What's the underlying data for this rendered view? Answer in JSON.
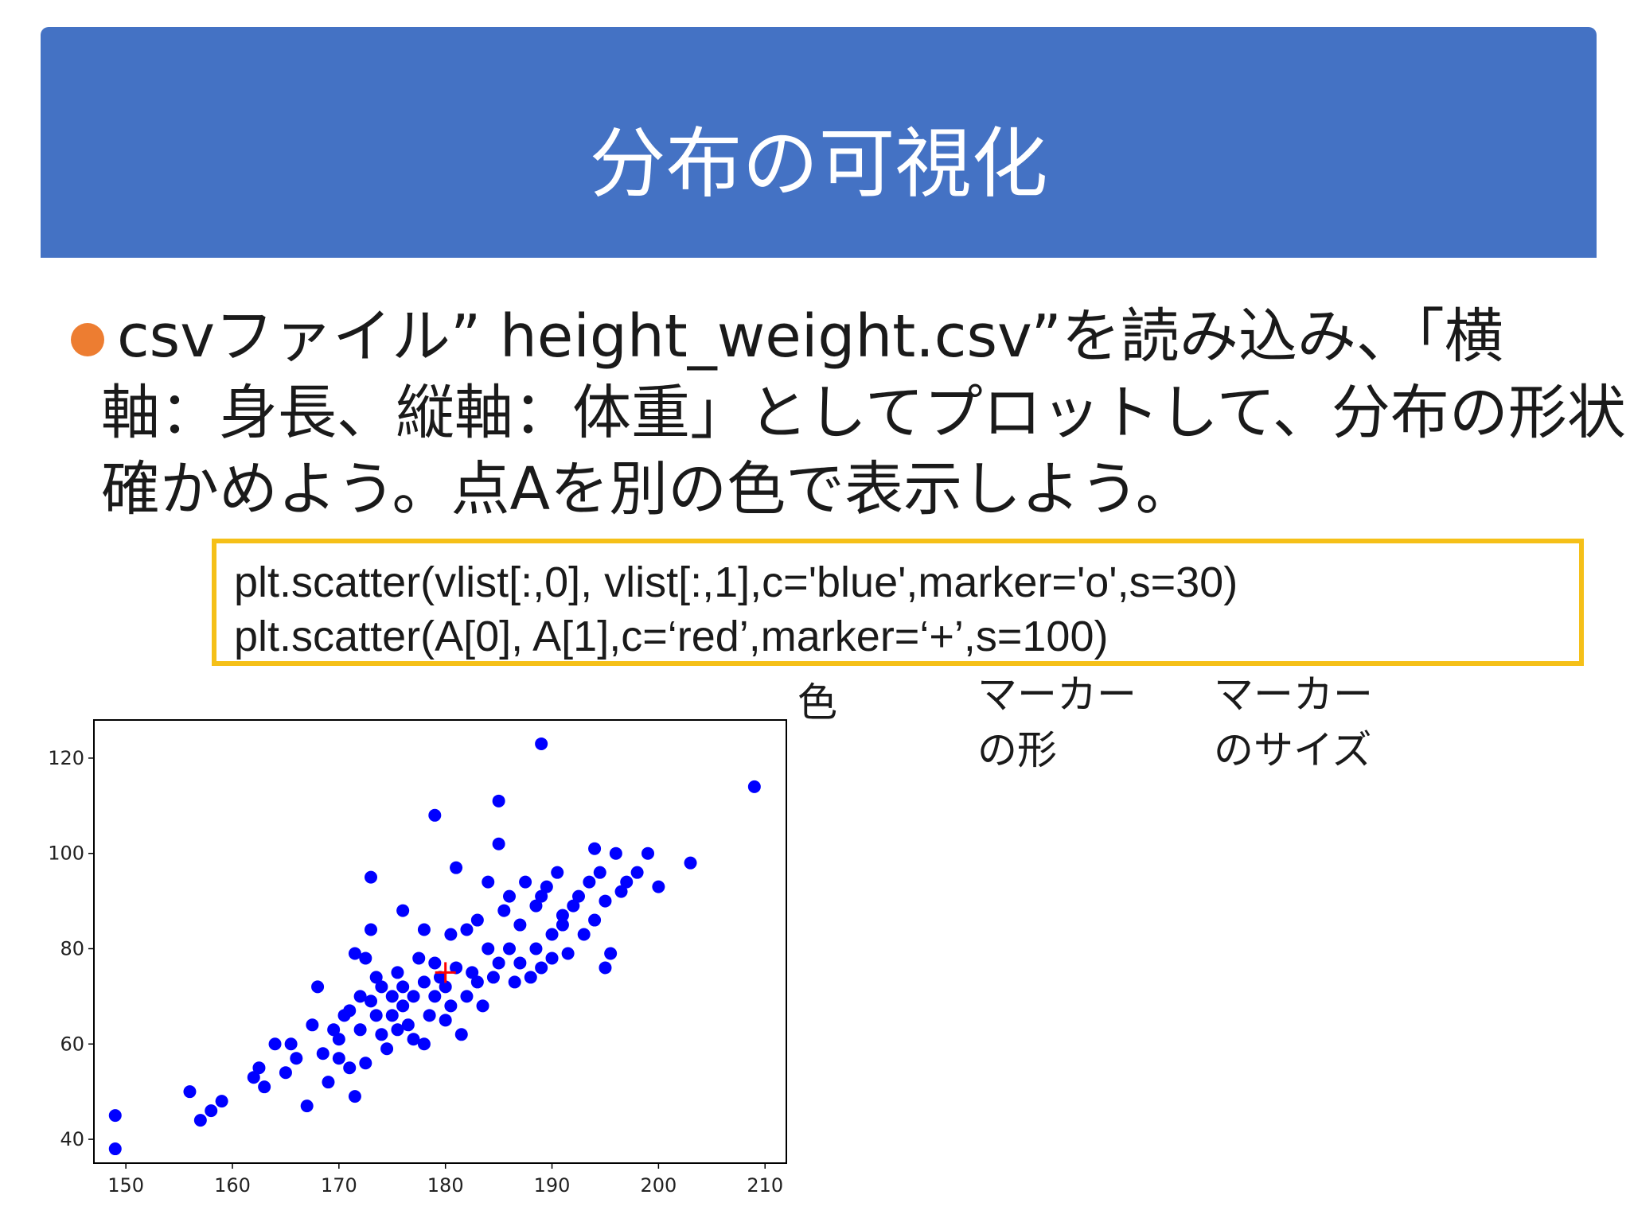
{
  "slide": {
    "title": "分布の可視化",
    "bullet_lines": [
      "csvファイル” height_weight.csv”を読み込み、「横",
      "軸：身長、縦軸：体重」としてプロットして、分布の形状を",
      "確かめよう。点Aを別の色で表示しよう。"
    ],
    "code_lines": [
      "plt.scatter(vlist[:,0], vlist[:,1],c='blue',marker='o',s=30)",
      "plt.scatter(A[0], A[1],c=‘red’,marker=‘+’,s=100)"
    ],
    "notes": {
      "color": "色",
      "marker_shape": [
        "マーカー",
        "の形"
      ],
      "marker_size": [
        "マーカー",
        "のサイズ"
      ]
    },
    "colors": {
      "title_bar": "#4472c4",
      "bullet": "#ed7d31",
      "code_border": "#f5c018",
      "scatter_points": "#0000ff",
      "point_a": "#ff0000"
    }
  },
  "chart_data": {
    "type": "scatter",
    "title": "",
    "xlabel": "",
    "ylabel": "",
    "xlim": [
      147,
      212
    ],
    "ylim": [
      35,
      128
    ],
    "xticks": [
      150,
      160,
      170,
      180,
      190,
      200,
      210
    ],
    "yticks": [
      40,
      60,
      80,
      100,
      120
    ],
    "grid": false,
    "series": [
      {
        "marker": "o",
        "color": "#0000ff",
        "points": [
          [
            149,
            45
          ],
          [
            149,
            38
          ],
          [
            156,
            50
          ],
          [
            157,
            44
          ],
          [
            158,
            46
          ],
          [
            159,
            48
          ],
          [
            162,
            53
          ],
          [
            162.5,
            55
          ],
          [
            163,
            51
          ],
          [
            164,
            60
          ],
          [
            165,
            54
          ],
          [
            165.5,
            60
          ],
          [
            166,
            57
          ],
          [
            167,
            47
          ],
          [
            167.5,
            64
          ],
          [
            168,
            72
          ],
          [
            168.5,
            58
          ],
          [
            169,
            52
          ],
          [
            169.5,
            63
          ],
          [
            170,
            61
          ],
          [
            170,
            57
          ],
          [
            170.5,
            66
          ],
          [
            171,
            55
          ],
          [
            171,
            67
          ],
          [
            171.5,
            79
          ],
          [
            171.5,
            49
          ],
          [
            172,
            63
          ],
          [
            172,
            70
          ],
          [
            172.5,
            78
          ],
          [
            172.5,
            56
          ],
          [
            173,
            69
          ],
          [
            173,
            84
          ],
          [
            173,
            95
          ],
          [
            173.5,
            66
          ],
          [
            173.5,
            74
          ],
          [
            174,
            62
          ],
          [
            174,
            72
          ],
          [
            174.5,
            59
          ],
          [
            175,
            70
          ],
          [
            175,
            66
          ],
          [
            175.5,
            63
          ],
          [
            175.5,
            75
          ],
          [
            176,
            68
          ],
          [
            176,
            72
          ],
          [
            176.5,
            64
          ],
          [
            177,
            61
          ],
          [
            177,
            70
          ],
          [
            177.5,
            78
          ],
          [
            178,
            60
          ],
          [
            178,
            73
          ],
          [
            178.5,
            66
          ],
          [
            179,
            70
          ],
          [
            179,
            77
          ],
          [
            179,
            108
          ],
          [
            179.5,
            74
          ],
          [
            180,
            72
          ],
          [
            180,
            65
          ],
          [
            180.5,
            83
          ],
          [
            180.5,
            68
          ],
          [
            181,
            76
          ],
          [
            181,
            97
          ],
          [
            181.5,
            62
          ],
          [
            182,
            70
          ],
          [
            182,
            84
          ],
          [
            182.5,
            75
          ],
          [
            183,
            73
          ],
          [
            183,
            86
          ],
          [
            183.5,
            68
          ],
          [
            184,
            80
          ],
          [
            184,
            94
          ],
          [
            184.5,
            74
          ],
          [
            185,
            77
          ],
          [
            185,
            111
          ],
          [
            185,
            102
          ],
          [
            185.5,
            88
          ],
          [
            186,
            80
          ],
          [
            186,
            91
          ],
          [
            186.5,
            73
          ],
          [
            187,
            85
          ],
          [
            187,
            77
          ],
          [
            187.5,
            94
          ],
          [
            188,
            74
          ],
          [
            188.5,
            89
          ],
          [
            188.5,
            80
          ],
          [
            189,
            91
          ],
          [
            189,
            76
          ],
          [
            189,
            123
          ],
          [
            189.5,
            93
          ],
          [
            190,
            78
          ],
          [
            190,
            83
          ],
          [
            190.5,
            96
          ],
          [
            191,
            85
          ],
          [
            191.5,
            79
          ],
          [
            192,
            89
          ],
          [
            192.5,
            91
          ],
          [
            193,
            83
          ],
          [
            193.5,
            94
          ],
          [
            194,
            86
          ],
          [
            194.5,
            96
          ],
          [
            195,
            90
          ],
          [
            195,
            76
          ],
          [
            195.5,
            79
          ],
          [
            196,
            100
          ],
          [
            196.5,
            92
          ],
          [
            197,
            94
          ],
          [
            198,
            96
          ],
          [
            199,
            100
          ],
          [
            200,
            93
          ],
          [
            203,
            98
          ],
          [
            209,
            114
          ],
          [
            194,
            101
          ],
          [
            176,
            88
          ],
          [
            178,
            84
          ],
          [
            191,
            87
          ]
        ]
      },
      {
        "name": "A",
        "marker": "+",
        "color": "#ff0000",
        "points": [
          [
            180,
            75
          ]
        ]
      }
    ]
  }
}
